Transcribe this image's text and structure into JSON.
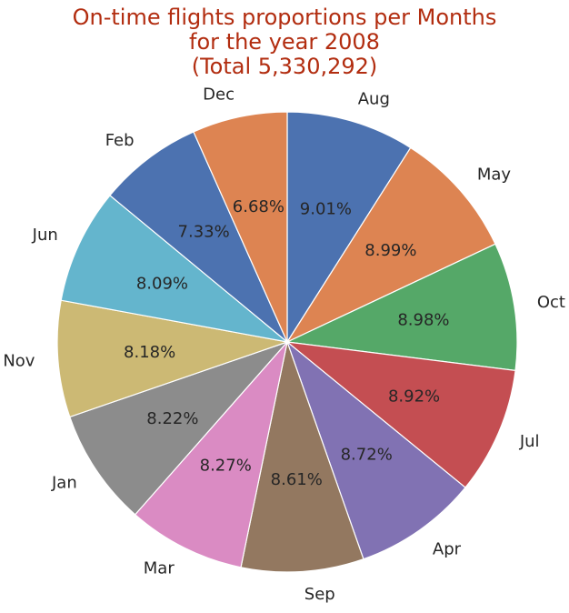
{
  "chart_data": {
    "type": "pie",
    "title_lines": [
      "On-time flights proportions per Months",
      "for the year 2008",
      "(Total 5,330,292)"
    ],
    "title_color": "#b22d10",
    "start_angle_deg": 90,
    "direction": "clockwise",
    "slices": [
      {
        "label": "Aug",
        "value": 9.01,
        "pct_label": "9.01%",
        "color": "#4c72b0"
      },
      {
        "label": "May",
        "value": 8.99,
        "pct_label": "8.99%",
        "color": "#dd8452"
      },
      {
        "label": "Oct",
        "value": 8.98,
        "pct_label": "8.98%",
        "color": "#55a868"
      },
      {
        "label": "Jul",
        "value": 8.92,
        "pct_label": "8.92%",
        "color": "#c44e52"
      },
      {
        "label": "Apr",
        "value": 8.72,
        "pct_label": "8.72%",
        "color": "#8172b3"
      },
      {
        "label": "Sep",
        "value": 8.61,
        "pct_label": "8.61%",
        "color": "#937860"
      },
      {
        "label": "Mar",
        "value": 8.27,
        "pct_label": "8.27%",
        "color": "#da8bc3"
      },
      {
        "label": "Jan",
        "value": 8.22,
        "pct_label": "8.22%",
        "color": "#8c8c8c"
      },
      {
        "label": "Nov",
        "value": 8.18,
        "pct_label": "8.18%",
        "color": "#ccb974"
      },
      {
        "label": "Jun",
        "value": 8.09,
        "pct_label": "8.09%",
        "color": "#64b5cd"
      },
      {
        "label": "Feb",
        "value": 7.33,
        "pct_label": "7.33%",
        "color": "#4c72b0"
      },
      {
        "label": "Dec",
        "value": 6.68,
        "pct_label": "6.68%",
        "color": "#dd8452"
      }
    ]
  }
}
